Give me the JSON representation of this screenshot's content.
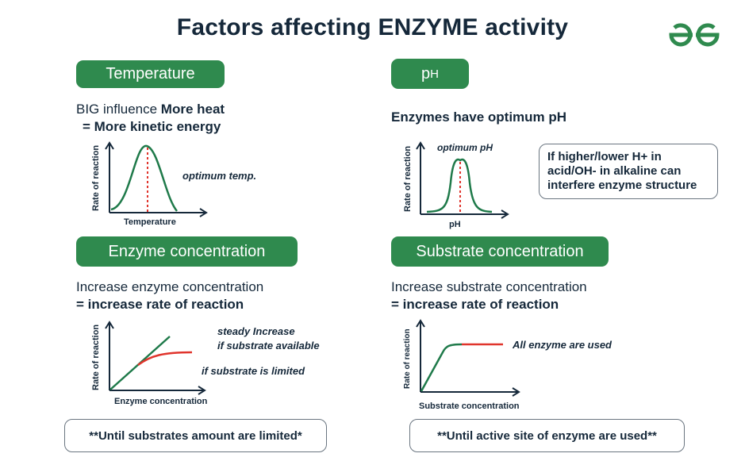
{
  "title": "Factors affecting ENZYME activity",
  "logo": {
    "icon": "geeksforgeeks-logo-icon",
    "color": "#2f8a4e"
  },
  "colors": {
    "accent": "#2f8a4e",
    "curve_green": "#1f7a4a",
    "limit_red": "#e0342c",
    "text_dark": "#15283a"
  },
  "temperature": {
    "label": "Temperature",
    "line1_normal": "BIG influence ",
    "line1_bold": "More heat",
    "line2": "= More kinetic energy",
    "ylabel": "Rate of reaction",
    "xlabel": "Temperature",
    "annotation": "optimum temp."
  },
  "ph": {
    "label_base": "p",
    "label_sup": "H",
    "heading": "Enzymes have optimum pH",
    "ylabel": "Rate of reaction",
    "xlabel": "pH",
    "annotation": "optimum pH",
    "note": "If higher/lower H+ in acid/OH- in alkaline can interfere enzyme structure"
  },
  "enzyme": {
    "label": "Enzyme concentration",
    "line1": "Increase enzyme concentration",
    "line2": "= increase rate of reaction",
    "ylabel": "Rate of reaction",
    "xlabel": "Enzyme concentration",
    "annotation1_line1": "steady Increase",
    "annotation1_line2": "if substrate available",
    "annotation2": "if substrate is limited",
    "footnote": "**Until substrates amount are limited*"
  },
  "substrate": {
    "label": "Substrate concentration",
    "line1": "Increase substrate concentration",
    "line2": "= increase rate of reaction",
    "ylabel": "Rate of reaction",
    "xlabel": "Substrate concentration",
    "annotation": "All enzyme are used",
    "footnote": "**Until active site of enzyme are used**"
  }
}
